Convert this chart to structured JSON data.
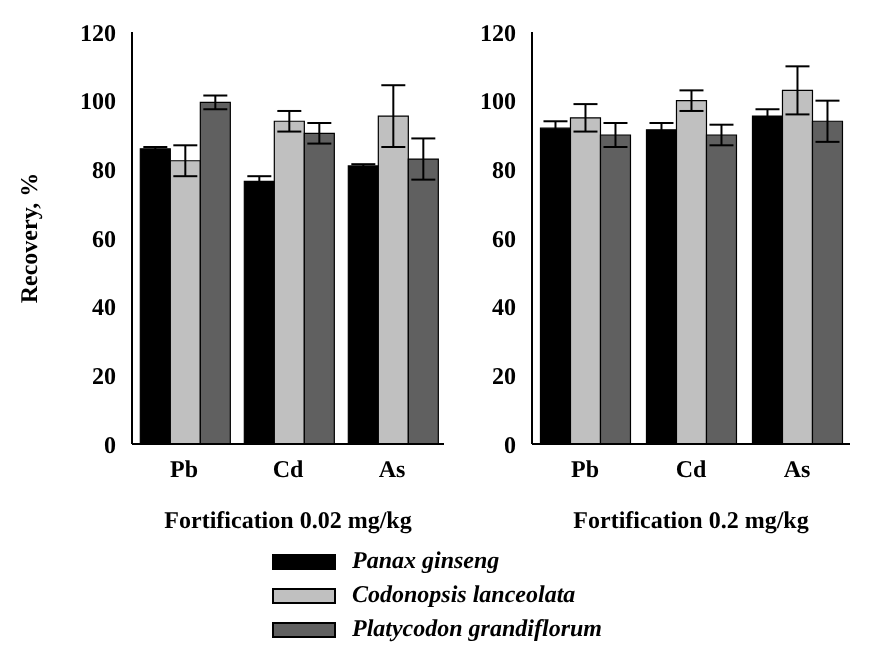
{
  "chart_data": [
    {
      "type": "bar",
      "xlabel": "Fortification 0.02 mg/kg",
      "ylabel": "Recovery, %",
      "categories": [
        "Pb",
        "Cd",
        "As"
      ],
      "ylim": [
        0,
        120
      ],
      "yticks": [
        0,
        20,
        40,
        60,
        80,
        100,
        120
      ],
      "legend": "bottom",
      "series": [
        {
          "name": "Panax ginseng",
          "color": "#000000",
          "values": [
            86,
            76.5,
            81
          ],
          "errors": [
            0.5,
            1.5,
            0.5
          ]
        },
        {
          "name": "Codonopsis lanceolata",
          "color": "#c0c0c0",
          "values": [
            82.5,
            94,
            95.5
          ],
          "errors": [
            4.5,
            3,
            9
          ]
        },
        {
          "name": "Platycodon grandiflorum",
          "color": "#606060",
          "values": [
            99.5,
            90.5,
            83
          ],
          "errors": [
            2,
            3,
            6
          ]
        }
      ]
    },
    {
      "type": "bar",
      "xlabel": "Fortification 0.2 mg/kg",
      "categories": [
        "Pb",
        "Cd",
        "As"
      ],
      "ylim": [
        0,
        120
      ],
      "yticks": [
        0,
        20,
        40,
        60,
        80,
        100,
        120
      ],
      "series": [
        {
          "color": "#000000",
          "values": [
            92,
            91.5,
            95.5
          ],
          "errors": [
            2,
            2,
            2
          ]
        },
        {
          "color": "#c0c0c0",
          "values": [
            95,
            100,
            103
          ],
          "errors": [
            4,
            3,
            7
          ]
        },
        {
          "color": "#606060",
          "values": [
            90,
            90,
            94
          ],
          "errors": [
            3.5,
            3,
            6
          ]
        }
      ]
    }
  ]
}
